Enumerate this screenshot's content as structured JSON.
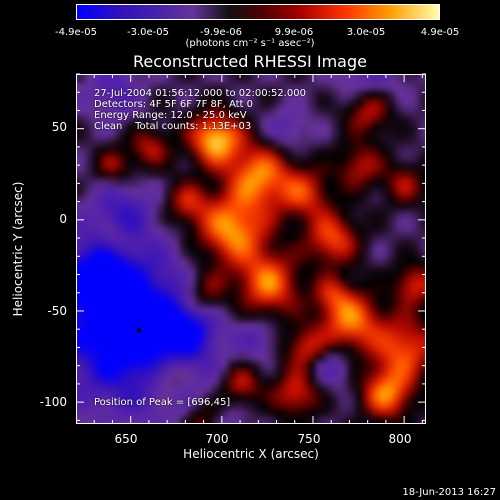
{
  "colorbar": {
    "ticks": [
      "-4.9e-05",
      "-3.0e-05",
      "-9.9e-06",
      "9.9e-06",
      "3.0e-05",
      "4.9e-05"
    ],
    "unit": "(photons cm⁻² s⁻¹ asec⁻²)"
  },
  "chart_data": {
    "type": "heatmap",
    "title": "Reconstructed RHESSI Image",
    "xlabel": "Heliocentric X (arcsec)",
    "ylabel": "Heliocentric Y (arcsec)",
    "xlim": [
      620,
      812
    ],
    "ylim": [
      -112,
      80
    ],
    "x_ticks": [
      "650",
      "700",
      "750",
      "800"
    ],
    "y_ticks": [
      "50",
      "0",
      "-50",
      "-100"
    ],
    "x_tick_values": [
      650,
      700,
      750,
      800
    ],
    "y_tick_values": [
      50,
      0,
      -50,
      -100
    ],
    "value_range": [
      -4.9e-05,
      4.9e-05
    ],
    "colormap": "rhessi-blue-black-red-yellow",
    "annotations": [
      "27-Jul-2004 01:56:12.000 to 02:00:52.000",
      "Detectors: 4F 5F 6F 7F 8F, Att 0",
      "Energy Range: 12.0 - 25.0 keV",
      "Clean    Total counts: 1.13E+03"
    ],
    "peak_label": "Position of Peak = [696,45]",
    "marker": {
      "x": 654,
      "y": -60
    }
  },
  "footer": {
    "date": "18-Jun-2013 16:27"
  }
}
